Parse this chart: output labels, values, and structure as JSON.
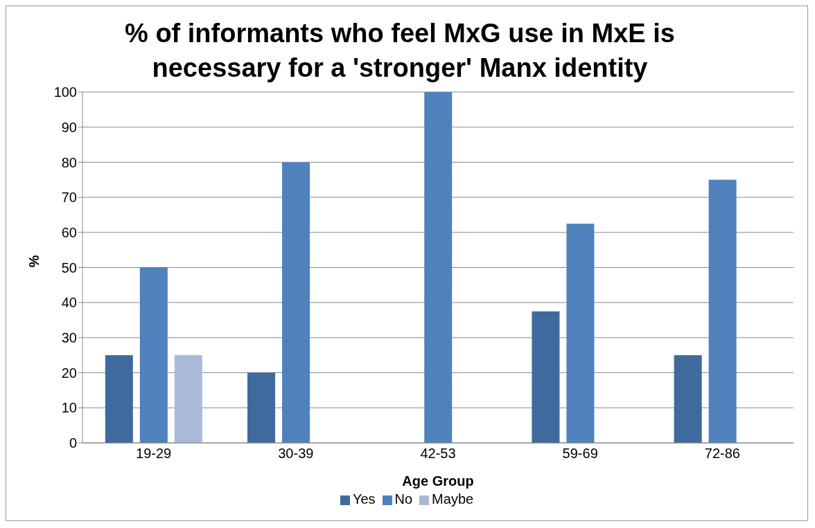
{
  "chart_data": {
    "type": "bar",
    "title": "% of informants who feel MxG use in MxE is necessary for a 'stronger' Manx identity",
    "xlabel": "Age Group",
    "ylabel": "%",
    "categories": [
      "19-29",
      "30-39",
      "42-53",
      "59-69",
      "72-86"
    ],
    "series": [
      {
        "name": "Yes",
        "color": "#3f6a9e",
        "values": [
          25,
          20,
          0,
          37.5,
          25
        ]
      },
      {
        "name": "No",
        "color": "#4f81bd",
        "values": [
          50,
          80,
          100,
          62.5,
          75
        ]
      },
      {
        "name": "Maybe",
        "color": "#aab9d8",
        "values": [
          25,
          0,
          0,
          0,
          0
        ]
      }
    ],
    "ylim": [
      0,
      100
    ],
    "yticks": [
      0,
      10,
      20,
      30,
      40,
      50,
      60,
      70,
      80,
      90,
      100
    ],
    "grid": "y",
    "legend": "bottom"
  }
}
